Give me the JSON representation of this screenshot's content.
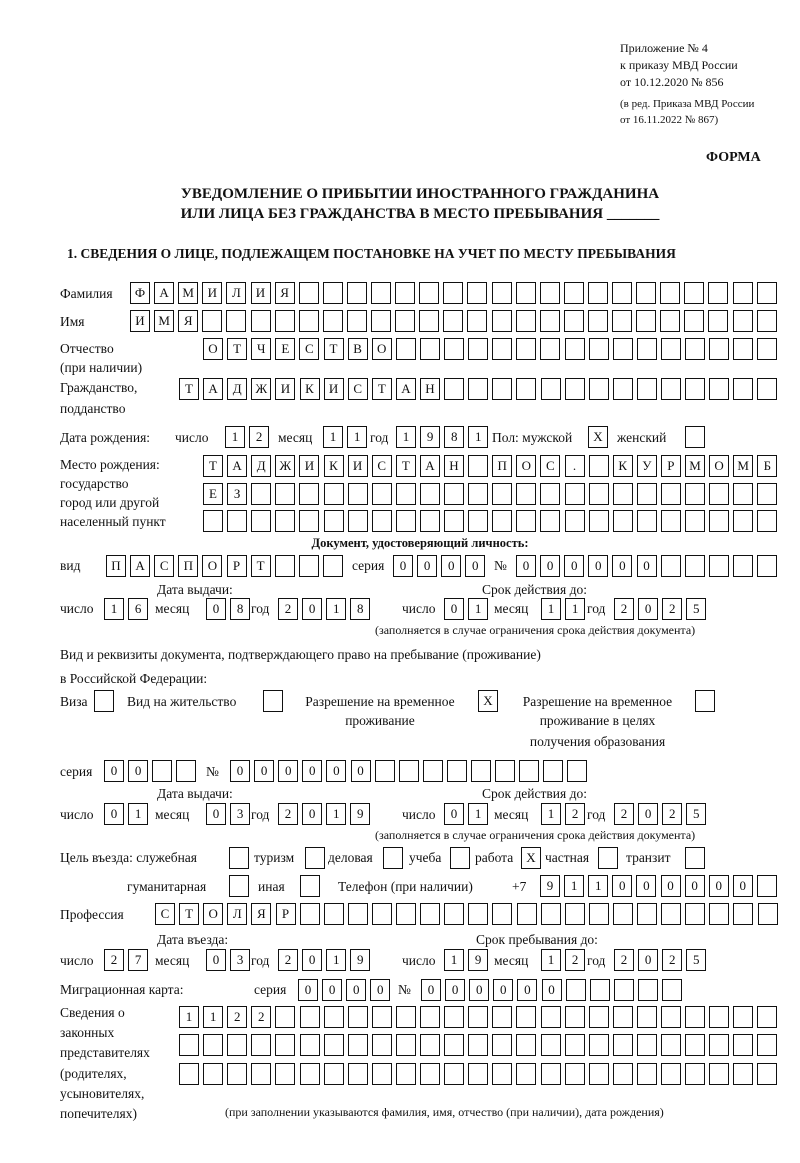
{
  "header": {
    "line1": "Приложение № 4",
    "line2": "к приказу МВД России",
    "line3": "от 10.12.2020 № 856",
    "line4": "(в ред. Приказа МВД России",
    "line5": "от 16.11.2022 № 867)",
    "form": "ФОРМА"
  },
  "title": {
    "line1": "УВЕДОМЛЕНИЕ О ПРИБЫТИИ ИНОСТРАННОГО ГРАЖДАНИНА",
    "line2": "ИЛИ ЛИЦА БЕЗ ГРАЖДАНСТВА В МЕСТО ПРЕБЫВАНИЯ _______"
  },
  "section1": "1. СВЕДЕНИЯ О ЛИЦЕ, ПОДЛЕЖАЩЕМ ПОСТАНОВКЕ НА УЧЕТ ПО МЕСТУ ПРЕБЫВАНИЯ",
  "labels": {
    "surname": "Фамилия",
    "name": "Имя",
    "patronymic1": "Отчество",
    "patronymic2": "(при наличии)",
    "citizenship1": "Гражданство,",
    "citizenship2": "подданство",
    "dob": "Дата рождения:",
    "day": "число",
    "month": "месяц",
    "year": "год",
    "sex": "Пол: мужской",
    "female": "женский",
    "pob1": "Место рождения:",
    "pob2": "государство",
    "pob3": "город или другой",
    "pob4": "населенный пункт",
    "id_doc": "Документ, удостоверяющий личность:",
    "kind": "вид",
    "series": "серия",
    "number": "№",
    "issue_date": "Дата выдачи:",
    "valid_until": "Срок действия до:",
    "valid_note": "(заполняется в случае ограничения срока действия документа)",
    "right1": "Вид и реквизиты документа, подтверждающего право на пребывание (проживание)",
    "right2": "в Российской Федерации:",
    "visa": "Виза",
    "residence": "Вид на жительство",
    "trp1": "Разрешение на временное",
    "trp2": "проживание",
    "trpe1": "Разрешение на временное",
    "trpe2": "проживание в целях",
    "trpe3": "получения образования",
    "purpose": "Цель въезда: служебная",
    "tourism": "туризм",
    "business": "деловая",
    "study": "учеба",
    "work": "работа",
    "private": "частная",
    "transit": "транзит",
    "humanitarian": "гуманитарная",
    "other": "иная",
    "phone": "Телефон (при наличии)",
    "phone_prefix": "+7",
    "profession": "Профессия",
    "entry_date": "Дата въезда:",
    "stay_until": "Срок пребывания до:",
    "migration_card": "Миграционная карта:",
    "reps1": "Сведения о",
    "reps2": "законных",
    "reps3": "представителях",
    "reps4": "(родителях,",
    "reps5": "усыновителях,",
    "reps6": "попечителях)",
    "reps_note": "(при заполнении указываются фамилия, имя, отчество (при наличии), дата рождения)"
  },
  "values": {
    "surname": "ФАМИЛИЯ",
    "name": "ИМЯ",
    "patronymic": "ОТЧЕСТВО",
    "citizenship": "ТАДЖИКИСТАН",
    "dob": {
      "day": "12",
      "month": "11",
      "year": "1981"
    },
    "sex_male": "X",
    "sex_female": "",
    "pob_row1": "ТАДЖИКИСТАН ПОС. КУРМОМБ",
    "pob_row2": "ЕЗ",
    "pob_row3": "",
    "doc": {
      "kind": "ПАСПОРТ",
      "series": "0000",
      "number": "000000",
      "issue": {
        "day": "16",
        "month": "08",
        "year": "2018"
      },
      "valid": {
        "day": "01",
        "month": "11",
        "year": "2025"
      }
    },
    "right": {
      "visa": "",
      "residence": "",
      "trp": "X",
      "trpe": "",
      "series": "00",
      "number": "000000",
      "issue": {
        "day": "01",
        "month": "03",
        "year": "2019"
      },
      "valid": {
        "day": "01",
        "month": "12",
        "year": "2025"
      }
    },
    "purpose": {
      "official": "",
      "tourism": "",
      "business": "",
      "study": "",
      "work": "X",
      "private": "",
      "transit": "",
      "humanitarian": "",
      "other": ""
    },
    "phone": "911000000",
    "profession": "СТОЛЯР",
    "entry": {
      "day": "27",
      "month": "03",
      "year": "2019"
    },
    "stay": {
      "day": "19",
      "month": "12",
      "year": "2025"
    },
    "migration": {
      "series": "0000",
      "number": "000000"
    },
    "reps_row1": "1122",
    "reps_row2": "",
    "reps_row3": ""
  }
}
